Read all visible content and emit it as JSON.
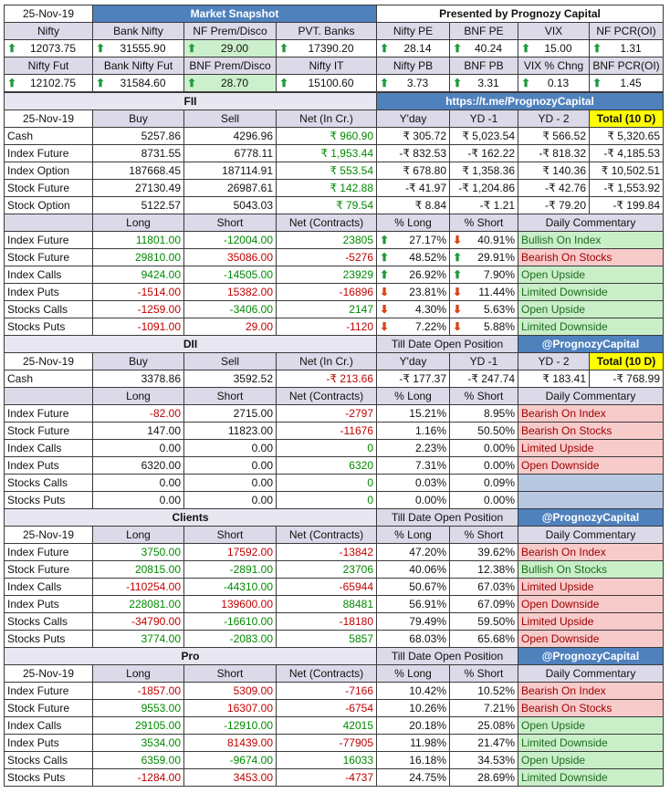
{
  "snapshot": {
    "date": "25-Nov-19",
    "title": "Market Snapshot",
    "presented_by": "Presented by Prognozy Capital",
    "row1_headers": [
      "Nifty",
      "Bank Nifty",
      "NF Prem/Disco",
      "PVT. Banks",
      "Nifty PE",
      "BNF PE",
      "VIX",
      "NF PCR(OI)"
    ],
    "row1_values": [
      "12073.75",
      "31555.90",
      "29.00",
      "17390.20",
      "28.14",
      "40.24",
      "15.00",
      "1.31"
    ],
    "row2_headers": [
      "Nifty Fut",
      "Bank Nifty Fut",
      "BNF Prem/Disco",
      "Nifty IT",
      "Nifty PB",
      "BNF PB",
      "VIX % Chng",
      "BNF PCR(OI)"
    ],
    "row2_values": [
      "12102.75",
      "31584.60",
      "28.70",
      "15100.60",
      "3.73",
      "3.31",
      "0.13",
      "1.45"
    ],
    "link": "https://t.me/PrognozyCapital"
  },
  "fii": {
    "title": "FII",
    "cash_headers": [
      "25-Nov-19",
      "Buy",
      "Sell",
      "Net (In Cr.)",
      "Y'day",
      "YD -1",
      "YD - 2",
      "Total (10 D)"
    ],
    "cash_rows": [
      {
        "label": "Cash",
        "buy": "5257.86",
        "sell": "4296.96",
        "net": "₹ 960.90",
        "yday": "₹ 305.72",
        "yd1": "₹ 5,023.54",
        "yd2": "₹ 566.52",
        "total": "₹ 5,320.65"
      },
      {
        "label": "Index Future",
        "buy": "8731.55",
        "sell": "6778.11",
        "net": "₹ 1,953.44",
        "yday": "-₹ 832.53",
        "yd1": "-₹ 162.22",
        "yd2": "-₹ 818.32",
        "total": "-₹ 4,185.53"
      },
      {
        "label": "Index Option",
        "buy": "187668.45",
        "sell": "187114.91",
        "net": "₹ 553.54",
        "yday": "₹ 678.80",
        "yd1": "₹ 1,358.36",
        "yd2": "₹ 140.36",
        "total": "₹ 10,502.51"
      },
      {
        "label": "Stock Future",
        "buy": "27130.49",
        "sell": "26987.61",
        "net": "₹ 142.88",
        "yday": "-₹ 41.97",
        "yd1": "-₹ 1,204.86",
        "yd2": "-₹ 42.76",
        "total": "-₹ 1,553.92"
      },
      {
        "label": "Stock Option",
        "buy": "5122.57",
        "sell": "5043.03",
        "net": "₹ 79.54",
        "yday": "₹ 8.84",
        "yd1": "-₹ 1.21",
        "yd2": "-₹ 79.20",
        "total": "-₹ 199.84"
      }
    ],
    "oi_headers": [
      "",
      "Long",
      "Short",
      "Net (Contracts)",
      "% Long",
      "% Short",
      "Daily Commentary"
    ],
    "oi_rows": [
      {
        "label": "Index Future",
        "long": "11801.00",
        "short": "-12004.00",
        "net": "23805",
        "pl": "27.17%",
        "ps": "40.91%",
        "comment": "Bullish On Index"
      },
      {
        "label": "Stock Future",
        "long": "29810.00",
        "short": "35086.00",
        "net": "-5276",
        "pl": "48.52%",
        "ps": "29.91%",
        "comment": "Bearish On Stocks"
      },
      {
        "label": "Index Calls",
        "long": "9424.00",
        "short": "-14505.00",
        "net": "23929",
        "pl": "26.92%",
        "ps": "7.90%",
        "comment": "Open Upside"
      },
      {
        "label": "Index Puts",
        "long": "-1514.00",
        "short": "15382.00",
        "net": "-16896",
        "pl": "23.81%",
        "ps": "11.44%",
        "comment": "Limited Downside"
      },
      {
        "label": "Stocks Calls",
        "long": "-1259.00",
        "short": "-3406.00",
        "net": "2147",
        "pl": "4.30%",
        "ps": "5.63%",
        "comment": "Open Upside"
      },
      {
        "label": "Stocks Puts",
        "long": "-1091.00",
        "short": "29.00",
        "net": "-1120",
        "pl": "7.22%",
        "ps": "5.88%",
        "comment": "Limited Downside"
      }
    ]
  },
  "dii": {
    "title": "DII",
    "till_date": "Till Date Open Position",
    "handle": "@PrognozyCapital",
    "cash_headers": [
      "25-Nov-19",
      "Buy",
      "Sell",
      "Net (In Cr.)",
      "Y'day",
      "YD -1",
      "YD - 2",
      "Total (10 D)"
    ],
    "cash": {
      "label": "Cash",
      "buy": "3378.86",
      "sell": "3592.52",
      "net": "-₹ 213.66",
      "yday": "-₹ 177.37",
      "yd1": "-₹ 247.74",
      "yd2": "₹ 183.41",
      "total": "-₹ 768.99"
    },
    "oi_headers": [
      "",
      "Long",
      "Short",
      "Net (Contracts)",
      "% Long",
      "% Short",
      "Daily Commentary"
    ],
    "oi_rows": [
      {
        "label": "Index Future",
        "long": "-82.00",
        "short": "2715.00",
        "net": "-2797",
        "pl": "15.21%",
        "ps": "8.95%",
        "comment": "Bearish On Index"
      },
      {
        "label": "Stock Future",
        "long": "147.00",
        "short": "11823.00",
        "net": "-11676",
        "pl": "1.16%",
        "ps": "50.50%",
        "comment": "Bearish On Stocks"
      },
      {
        "label": "Index Calls",
        "long": "0.00",
        "short": "0.00",
        "net": "0",
        "pl": "2.23%",
        "ps": "0.00%",
        "comment": "Limited Upside"
      },
      {
        "label": "Index Puts",
        "long": "6320.00",
        "short": "0.00",
        "net": "6320",
        "pl": "7.31%",
        "ps": "0.00%",
        "comment": "Open Downside"
      },
      {
        "label": "Stocks Calls",
        "long": "0.00",
        "short": "0.00",
        "net": "0",
        "pl": "0.03%",
        "ps": "0.09%",
        "comment": ""
      },
      {
        "label": "Stocks Puts",
        "long": "0.00",
        "short": "0.00",
        "net": "0",
        "pl": "0.00%",
        "ps": "0.00%",
        "comment": ""
      }
    ]
  },
  "clients": {
    "title": "Clients",
    "till_date": "Till Date Open Position",
    "handle": "@PrognozyCapital",
    "headers": [
      "25-Nov-19",
      "Long",
      "Short",
      "Net (Contracts)",
      "% Long",
      "% Short",
      "Daily Commentary"
    ],
    "rows": [
      {
        "label": "Index Future",
        "long": "3750.00",
        "short": "17592.00",
        "net": "-13842",
        "pl": "47.20%",
        "ps": "39.62%",
        "comment": "Bearish On Index"
      },
      {
        "label": "Stock Future",
        "long": "20815.00",
        "short": "-2891.00",
        "net": "23706",
        "pl": "40.06%",
        "ps": "12.38%",
        "comment": "Bullish On Stocks"
      },
      {
        "label": "Index Calls",
        "long": "-110254.00",
        "short": "-44310.00",
        "net": "-65944",
        "pl": "50.67%",
        "ps": "67.03%",
        "comment": "Limited Upside"
      },
      {
        "label": "Index Puts",
        "long": "228081.00",
        "short": "139600.00",
        "net": "88481",
        "pl": "56.91%",
        "ps": "67.09%",
        "comment": "Open Downside"
      },
      {
        "label": "Stocks Calls",
        "long": "-34790.00",
        "short": "-16610.00",
        "net": "-18180",
        "pl": "79.49%",
        "ps": "59.50%",
        "comment": "Limited Upside"
      },
      {
        "label": "Stocks Puts",
        "long": "3774.00",
        "short": "-2083.00",
        "net": "5857",
        "pl": "68.03%",
        "ps": "65.68%",
        "comment": "Open Downside"
      }
    ]
  },
  "pro": {
    "title": "Pro",
    "till_date": "Till Date Open Position",
    "handle": "@PrognozyCapital",
    "headers": [
      "25-Nov-19",
      "Long",
      "Short",
      "Net (Contracts)",
      "% Long",
      "% Short",
      "Daily Commentary"
    ],
    "rows": [
      {
        "label": "Index Future",
        "long": "-1857.00",
        "short": "5309.00",
        "net": "-7166",
        "pl": "10.42%",
        "ps": "10.52%",
        "comment": "Bearish On Index"
      },
      {
        "label": "Stock Future",
        "long": "9553.00",
        "short": "16307.00",
        "net": "-6754",
        "pl": "10.26%",
        "ps": "7.21%",
        "comment": "Bearish On Stocks"
      },
      {
        "label": "Index Calls",
        "long": "29105.00",
        "short": "-12910.00",
        "net": "42015",
        "pl": "20.18%",
        "ps": "25.08%",
        "comment": "Open Upside"
      },
      {
        "label": "Index Puts",
        "long": "3534.00",
        "short": "81439.00",
        "net": "-77905",
        "pl": "11.98%",
        "ps": "21.47%",
        "comment": "Limited Downside"
      },
      {
        "label": "Stocks Calls",
        "long": "6359.00",
        "short": "-9674.00",
        "net": "16033",
        "pl": "16.18%",
        "ps": "34.53%",
        "comment": "Open Upside"
      },
      {
        "label": "Stocks Puts",
        "long": "-1284.00",
        "short": "3453.00",
        "net": "-4737",
        "pl": "24.75%",
        "ps": "28.69%",
        "comment": "Limited Downside"
      }
    ]
  },
  "colors": {
    "header_blue": "#4f81bd",
    "positive_green": "#008a00",
    "negative_red": "#c00000",
    "total_yellow": "#ffff00",
    "bullish_bg": "#c9efc9",
    "bearish_bg": "#f8cbcb"
  },
  "icons": {
    "up": "arrow-up-icon",
    "down": "arrow-down-icon"
  }
}
